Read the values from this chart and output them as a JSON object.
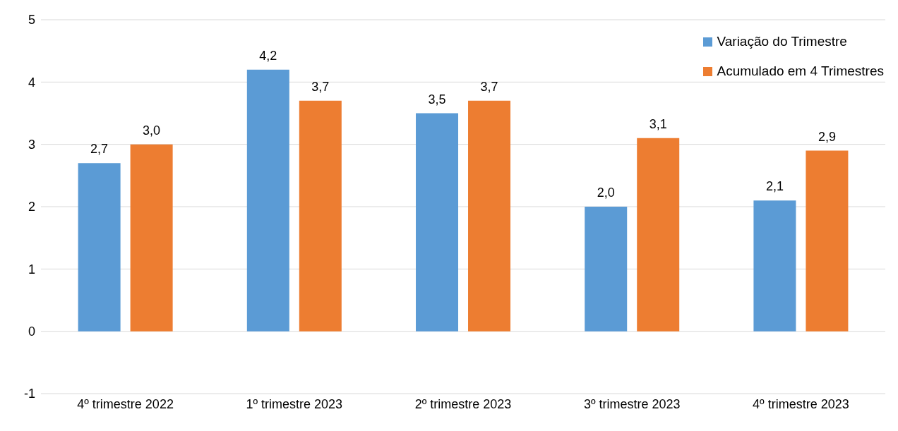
{
  "chart_data": {
    "type": "bar",
    "categories": [
      "4º trimestre 2022",
      "1º trimestre 2023",
      "2º trimestre 2023",
      "3º trimestre 2023",
      "4º trimestre 2023"
    ],
    "series": [
      {
        "name": "Variação do Trimestre",
        "color": "#5b9bd5",
        "values": [
          2.7,
          4.2,
          3.5,
          2.0,
          2.1
        ],
        "value_labels": [
          "2,7",
          "4,2",
          "3,5",
          "2,0",
          "2,1"
        ]
      },
      {
        "name": "Acumulado em 4 Trimestres",
        "color": "#ed7d31",
        "values": [
          3.0,
          3.7,
          3.7,
          3.1,
          2.9
        ],
        "value_labels": [
          "3,0",
          "3,7",
          "3,7",
          "3,1",
          "2,9"
        ]
      }
    ],
    "ylim": [
      -1,
      5
    ],
    "yticks": [
      -1,
      0,
      1,
      2,
      3,
      4,
      5
    ],
    "grid": "y",
    "legend": "top right"
  }
}
